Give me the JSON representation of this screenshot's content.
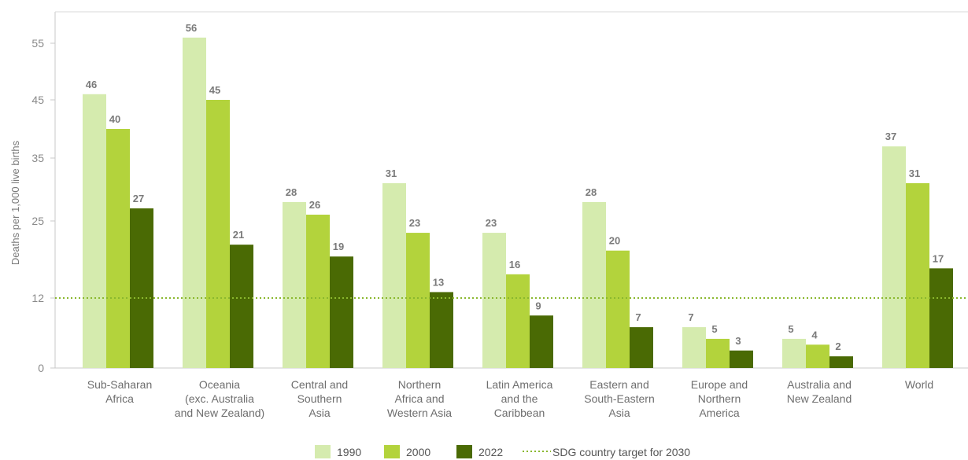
{
  "chart_data": {
    "type": "bar",
    "ylabel": "Deaths per 1,000 live births",
    "y_ticks": [
      0,
      12,
      25,
      35,
      45,
      55
    ],
    "categories": [
      [
        "Sub-Saharan",
        "Africa"
      ],
      [
        "Oceania",
        "(exc. Australia",
        "and New Zealand)"
      ],
      [
        "Central and",
        "Southern",
        "Asia"
      ],
      [
        "Northern",
        "Africa and",
        "Western Asia"
      ],
      [
        "Latin America",
        "and the",
        "Caribbean"
      ],
      [
        "Eastern and",
        "South-Eastern",
        "Asia"
      ],
      [
        "Europe and",
        "Northern",
        "America"
      ],
      [
        "Australia and",
        "New Zealand"
      ],
      [
        "World"
      ]
    ],
    "series": [
      {
        "name": "1990",
        "color": "#d5ebae",
        "values": [
          46,
          56,
          28,
          31,
          23,
          28,
          7,
          5,
          37
        ]
      },
      {
        "name": "2000",
        "color": "#b3d33c",
        "values": [
          40,
          45,
          26,
          23,
          16,
          20,
          5,
          4,
          31
        ]
      },
      {
        "name": "2022",
        "color": "#4a6a04",
        "values": [
          27,
          21,
          19,
          13,
          9,
          7,
          3,
          2,
          17
        ]
      }
    ],
    "reference_line": {
      "value": 12,
      "label": "SDG country target for 2030",
      "color": "#8ab82e",
      "style": "dotted"
    },
    "legend_position": "bottom-center",
    "grid": false
  }
}
